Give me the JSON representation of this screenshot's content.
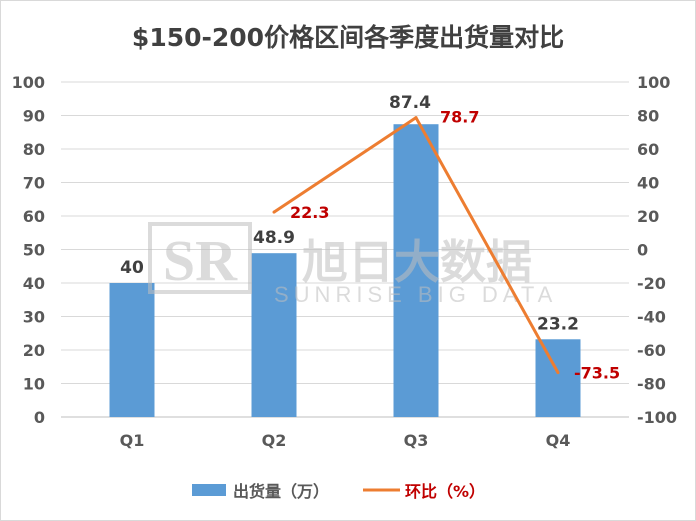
{
  "chart_data": {
    "type": "bar+line",
    "title": "$150-200价格区间各季度出货量对比",
    "categories": [
      "Q1",
      "Q2",
      "Q3",
      "Q4"
    ],
    "series": [
      {
        "name": "出货量（万）",
        "type": "bar",
        "axis": "left",
        "color": "#5b9bd5",
        "values": [
          40,
          48.9,
          87.4,
          23.2
        ],
        "labels": [
          "40",
          "48.9",
          "87.4",
          "23.2"
        ]
      },
      {
        "name": "环比（%）",
        "type": "line",
        "axis": "right",
        "color": "#ed7d31",
        "label_color": "#c00000",
        "values": [
          null,
          22.3,
          78.7,
          -73.5
        ],
        "labels": [
          "",
          "22.3",
          "78.7",
          "-73.5"
        ]
      }
    ],
    "y_left": {
      "min": 0,
      "max": 100,
      "step": 10,
      "ticks": [
        "0",
        "10",
        "20",
        "30",
        "40",
        "50",
        "60",
        "70",
        "80",
        "90",
        "100"
      ]
    },
    "y_right": {
      "min": -100,
      "max": 100,
      "step": 20,
      "ticks": [
        "-100",
        "-80",
        "-60",
        "-40",
        "-20",
        "0",
        "20",
        "40",
        "60",
        "80",
        "100"
      ]
    },
    "grid": true,
    "legend_position": "bottom",
    "watermark": {
      "cn": "旭日大数据",
      "en": "SUNRISE BIG DATA",
      "logo": "SR"
    }
  }
}
